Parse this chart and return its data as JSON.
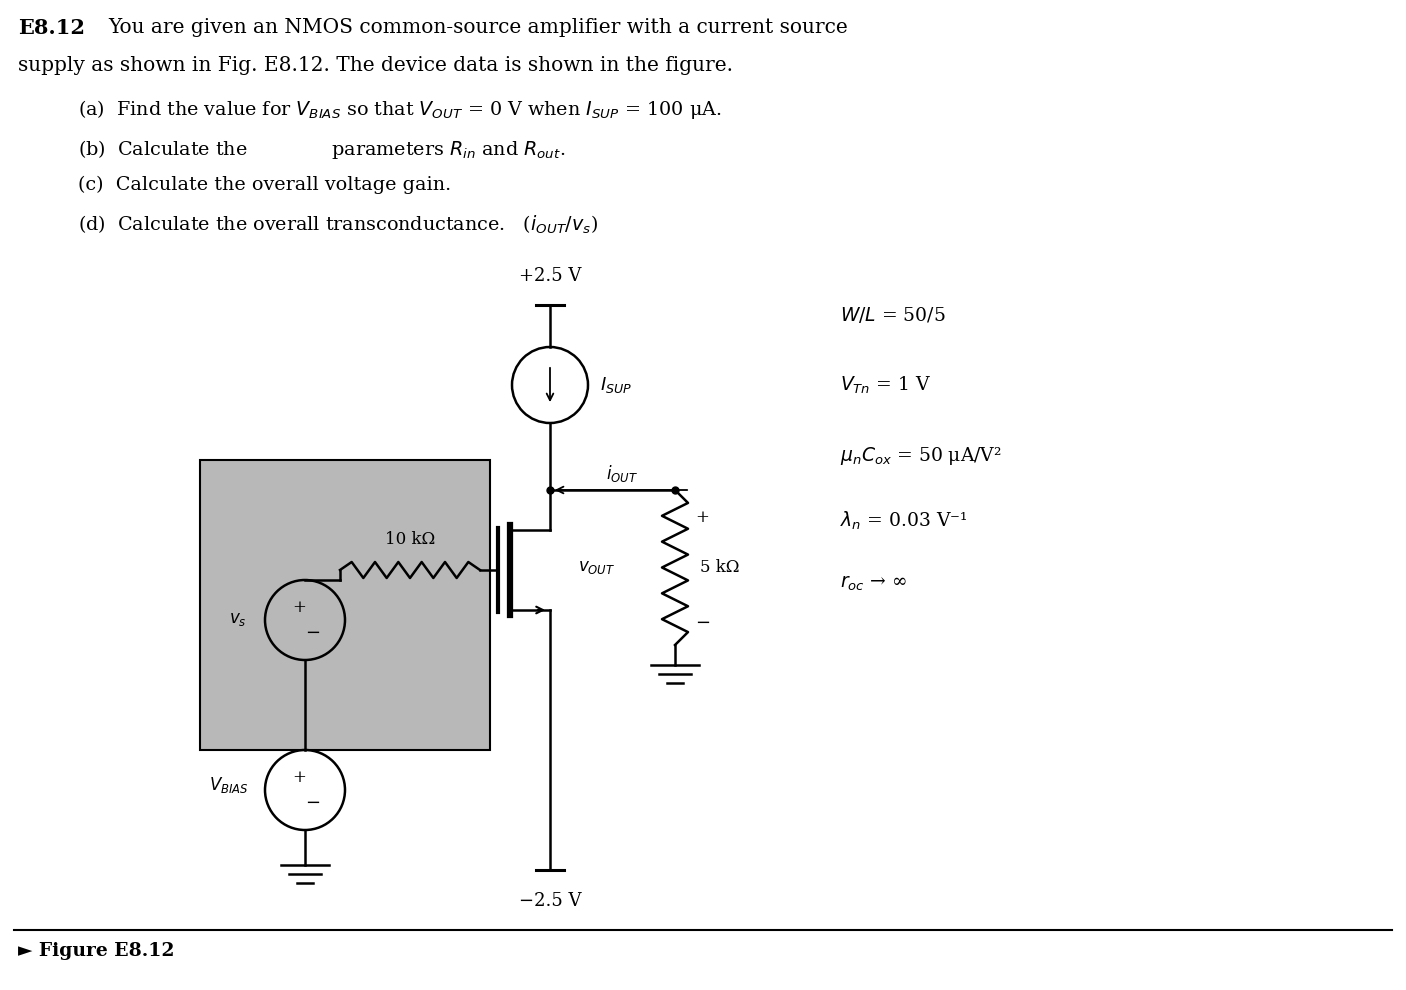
{
  "bg_color": "#ffffff",
  "shading_color": "#b8b8b8",
  "title_bold": "E8.12",
  "title_rest": "  You are given an NMOS common-source amplifier with a current source",
  "title_line2": "supply as shown in Fig. E8.12. The device data is shown in the figure.",
  "part_a": "(a)  Find the value for $V_{BIAS}$ so that $V_{OUT}$ = 0 V when $I_{SUP}$ = 100 μA.",
  "part_b": "(b)  Calculate the              parameters $R_{in}$ and $R_{out}$.",
  "part_c": "(c)  Calculate the overall voltage gain.",
  "part_d": "(d)  Calculate the overall transconductance.   ($i_{OUT}/v_s$)",
  "vdd_label": "+2.5 V",
  "vss_label": "−2.5 V",
  "isup_label": "$I_{SUP}$",
  "iout_label": "$i_{OUT}$",
  "vout_label": "$v_{OUT}$",
  "vs_label": "$v_s$",
  "vbias_label": "$V_{BIAS}$",
  "rg_label": "10 kΩ",
  "rl_label": "5 kΩ",
  "param1": "$W/L$ = 50/5",
  "param2": "$V_{Tn}$ = 1 V",
  "param3": "$\\mu_n C_{ox}$ = 50 μA/V²",
  "param4": "$\\lambda_n$ = 0.03 V⁻¹",
  "param5": "$r_{oc}$ → ∞",
  "figure_label": "► Figure E8.12"
}
